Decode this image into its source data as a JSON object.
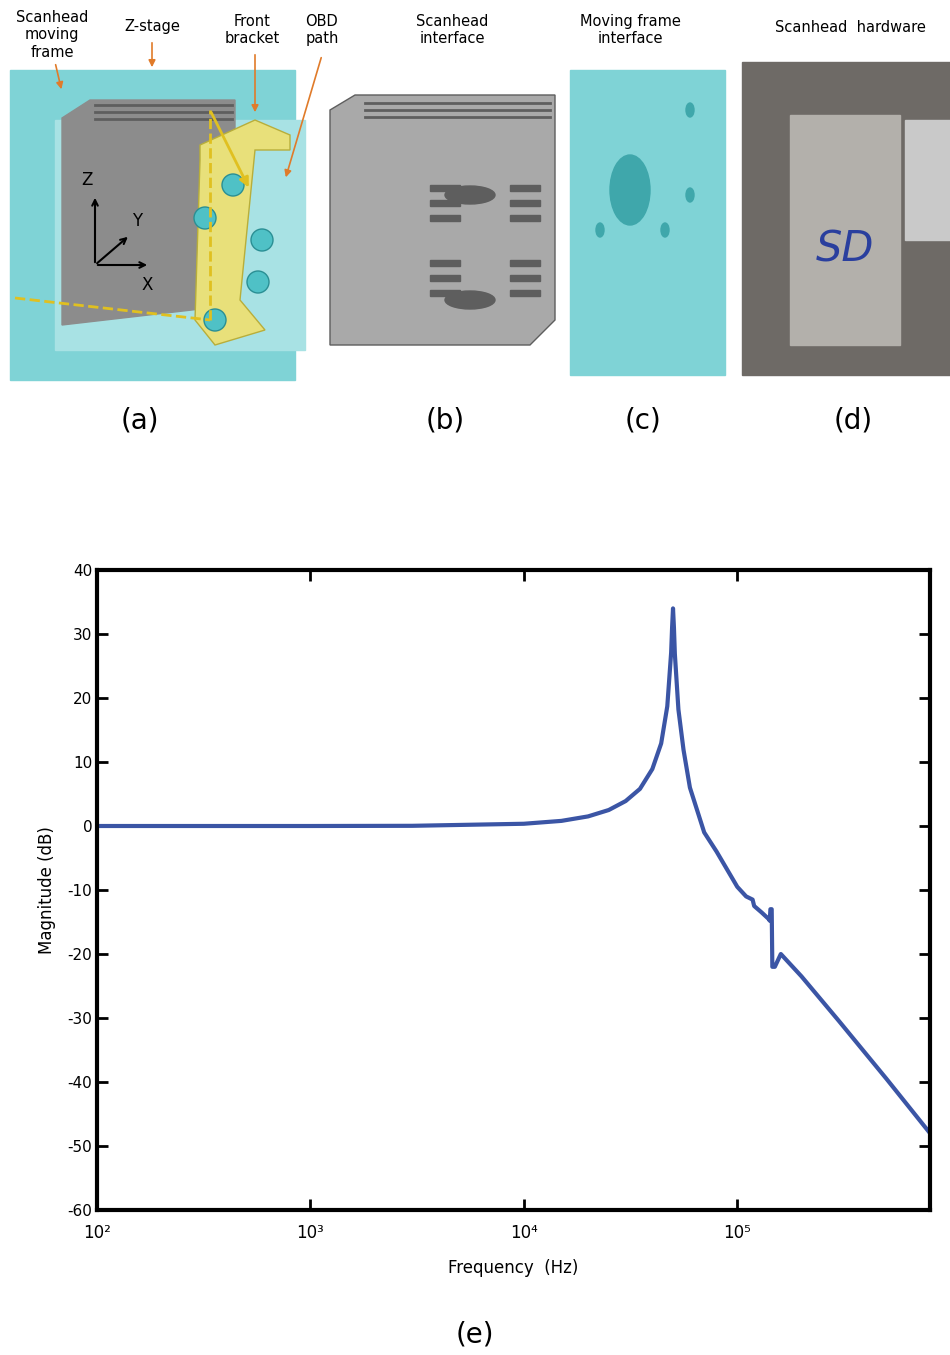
{
  "panels": [
    {
      "label": "(a)",
      "texts": {
        "moving_frame": "Scanhead\nmoving\nframe",
        "z_stage": "Z-stage",
        "front_bracket": "Front\nbracket",
        "obd_path": "OBD\npath"
      },
      "axes": [
        "Z",
        "Y",
        "X"
      ]
    },
    {
      "label": "(b)",
      "title": "Scanhead\ninterface"
    },
    {
      "label": "(c)",
      "title": "Moving frame\ninterface"
    },
    {
      "label": "(d)",
      "title": "Scanhead  hardware",
      "marking": "SD"
    }
  ],
  "chart_data": {
    "type": "line",
    "label": "(e)",
    "x_label": "Frequency  (Hz)",
    "y_label": "Magnitude (dB)",
    "log": "x",
    "grid": false,
    "color": "#3b55a5",
    "x": [
      100,
      1000,
      3000,
      10000,
      15000,
      20000,
      25000,
      30000,
      35000,
      40000,
      44000,
      47000,
      49000,
      49500,
      50000,
      50500,
      51000,
      53000,
      56000,
      60000,
      70000,
      80000,
      100000,
      110000,
      118000,
      120000,
      130000,
      140000,
      142000,
      143000,
      145000,
      146000,
      150000,
      160000,
      200000,
      300000,
      500000,
      800000
    ],
    "values": [
      0,
      0,
      0.03,
      0.35,
      0.8,
      1.5,
      2.5,
      3.9,
      5.8,
      8.9,
      12.9,
      18.7,
      27.1,
      31.0,
      34.0,
      31.0,
      26.9,
      18.2,
      11.9,
      6.0,
      -1.0,
      -4.0,
      -9.5,
      -11.0,
      -11.5,
      -12.5,
      -13.5,
      -14.5,
      -14.8,
      -13.0,
      -13.0,
      -22.0,
      -22.0,
      -20.0,
      -23.5,
      -30.5,
      -39.5,
      -48.0
    ],
    "xlim": [
      100,
      800000
    ],
    "ylim": [
      -60,
      40
    ],
    "xticks": [
      {
        "value": 100,
        "label": "10²"
      },
      {
        "value": 1000,
        "label": "10³"
      },
      {
        "value": 10000,
        "label": "10⁴"
      },
      {
        "value": 100000,
        "label": "10⁵"
      }
    ],
    "yticks": [
      -60,
      -50,
      -40,
      -30,
      -20,
      -10,
      0,
      10,
      20,
      30,
      40
    ]
  }
}
